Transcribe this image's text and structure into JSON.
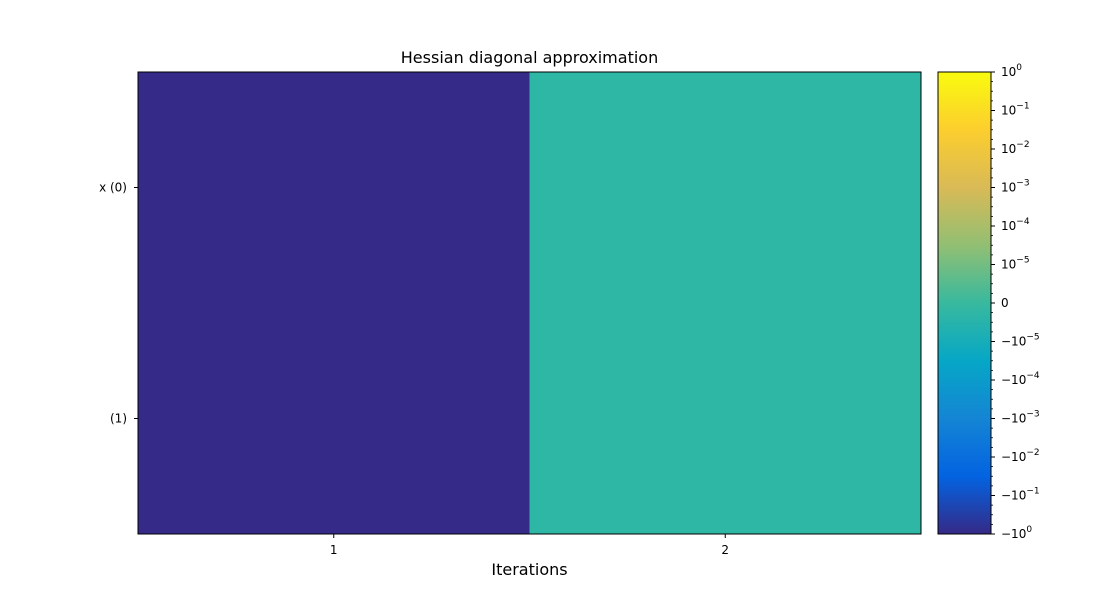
{
  "chart_data": {
    "type": "heatmap",
    "title": "Hessian diagonal approximation",
    "xlabel": "Iterations",
    "ylabel": "",
    "x_tick_labels": [
      "1",
      "2"
    ],
    "y_tick_labels": [
      "x (0)",
      "(1)"
    ],
    "cells": [
      {
        "row": 0,
        "col": 0,
        "value": -1,
        "color": "#352a87"
      },
      {
        "row": 1,
        "col": 0,
        "value": -1,
        "color": "#352a87"
      },
      {
        "row": 0,
        "col": 1,
        "value": 0,
        "color": "#2eb7a4"
      },
      {
        "row": 1,
        "col": 1,
        "value": 0,
        "color": "#2eb7a4"
      }
    ],
    "colorbar": {
      "scale": "symlog",
      "range": [
        -1,
        1
      ],
      "tick_labels": [
        {
          "base": "10",
          "exp": "0"
        },
        {
          "base": "10",
          "exp": "−1"
        },
        {
          "base": "10",
          "exp": "−2"
        },
        {
          "base": "10",
          "exp": "−3"
        },
        {
          "base": "10",
          "exp": "−4"
        },
        {
          "base": "10",
          "exp": "−5"
        },
        {
          "base": "0",
          "exp": ""
        },
        {
          "base": "−10",
          "exp": "−5"
        },
        {
          "base": "−10",
          "exp": "−4"
        },
        {
          "base": "−10",
          "exp": "−3"
        },
        {
          "base": "−10",
          "exp": "−2"
        },
        {
          "base": "−10",
          "exp": "−1"
        },
        {
          "base": "−10",
          "exp": "0"
        }
      ],
      "colormap": [
        "#352a87",
        "#0363e1",
        "#1485d4",
        "#06a7c6",
        "#38b99e",
        "#92bf73",
        "#d9ba56",
        "#fcce2e",
        "#f9fb0e"
      ]
    }
  }
}
